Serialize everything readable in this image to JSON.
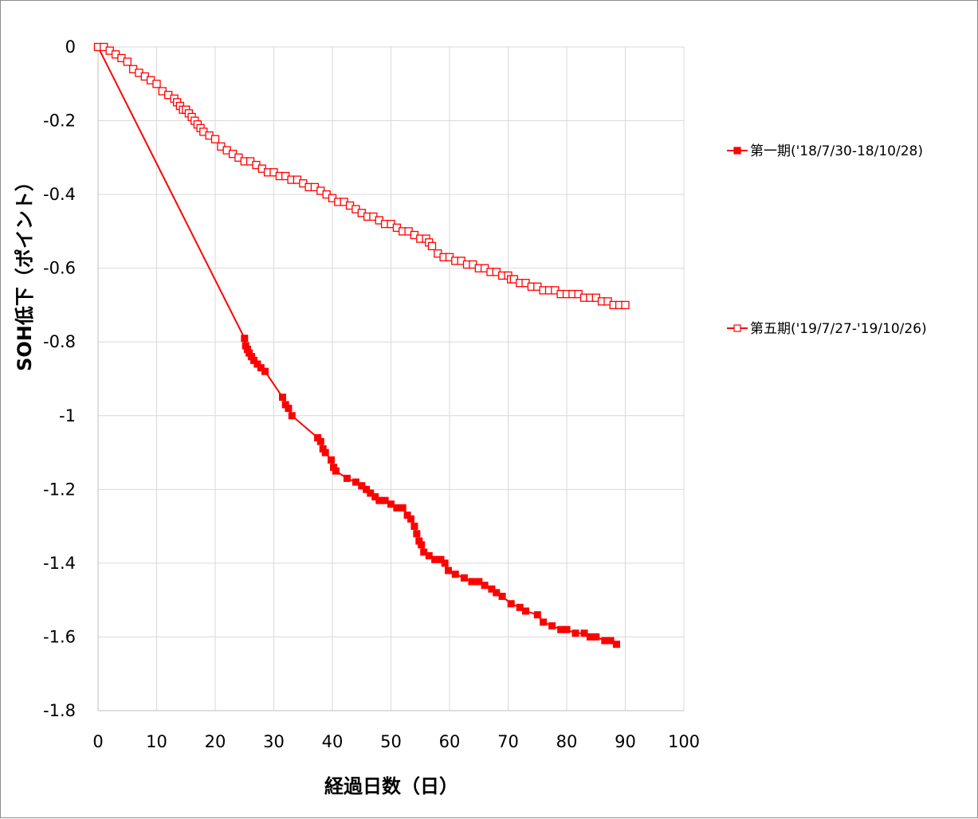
{
  "chart_data": {
    "type": "line",
    "xlabel": "経過日数（日）",
    "ylabel": "SOH低下（ポイント）",
    "xlim": [
      0,
      100
    ],
    "ylim": [
      -1.8,
      0
    ],
    "x_ticks": [
      "0",
      "10",
      "20",
      "30",
      "40",
      "50",
      "60",
      "70",
      "80",
      "90",
      "100"
    ],
    "y_ticks": [
      "0",
      "-0.2",
      "-0.4",
      "-0.6",
      "-0.8",
      "-1",
      "-1.2",
      "-1.4",
      "-1.6",
      "-1.8"
    ],
    "grid": true,
    "legend_position": "right",
    "series": [
      {
        "name": "第一期('18/7/30-18/10/28)",
        "color": "#ff0000",
        "marker": "filled-square",
        "x": [
          0,
          25.0,
          25.2,
          25.5,
          25.8,
          26.2,
          26.6,
          27.2,
          27.8,
          28.5,
          31.5,
          32.0,
          32.5,
          33.1,
          37.5,
          38.0,
          38.4,
          38.8,
          39.8,
          40.2,
          40.6,
          42.5,
          44.0,
          45.0,
          45.8,
          46.5,
          47.3,
          48.0,
          49.0,
          50.0,
          51.0,
          52.0,
          52.8,
          53.4,
          54.0,
          54.4,
          54.8,
          55.2,
          55.6,
          56.5,
          57.5,
          58.5,
          59.2,
          59.8,
          61.0,
          62.5,
          63.8,
          65.0,
          66.0,
          67.2,
          68.0,
          69.0,
          70.5,
          72.0,
          73.0,
          75.0,
          76.0,
          77.5,
          79.0,
          80.0,
          81.5,
          83.0,
          84.0,
          85.0,
          86.5,
          87.5,
          88.5
        ],
        "y": [
          0,
          -0.79,
          -0.81,
          -0.82,
          -0.83,
          -0.84,
          -0.85,
          -0.86,
          -0.87,
          -0.88,
          -0.95,
          -0.97,
          -0.98,
          -1.0,
          -1.06,
          -1.07,
          -1.09,
          -1.1,
          -1.12,
          -1.14,
          -1.15,
          -1.17,
          -1.18,
          -1.19,
          -1.2,
          -1.21,
          -1.22,
          -1.23,
          -1.23,
          -1.24,
          -1.25,
          -1.25,
          -1.27,
          -1.28,
          -1.3,
          -1.32,
          -1.34,
          -1.35,
          -1.37,
          -1.38,
          -1.39,
          -1.39,
          -1.4,
          -1.42,
          -1.43,
          -1.44,
          -1.45,
          -1.45,
          -1.46,
          -1.47,
          -1.48,
          -1.49,
          -1.51,
          -1.52,
          -1.53,
          -1.54,
          -1.56,
          -1.57,
          -1.58,
          -1.58,
          -1.59,
          -1.59,
          -1.6,
          -1.6,
          -1.61,
          -1.61,
          -1.62
        ]
      },
      {
        "name": "第五期('19/7/27-'19/10/26)",
        "color": "#ff0000",
        "marker": "hollow-square",
        "x": [
          0,
          1,
          2,
          3,
          4,
          5,
          6,
          7,
          8,
          9,
          10,
          11,
          12,
          13,
          13.5,
          14,
          14.5,
          15,
          15.5,
          16,
          16.5,
          17,
          17.5,
          18,
          19,
          20,
          21,
          22,
          23,
          24,
          25,
          26,
          27,
          28,
          29,
          30,
          31,
          32,
          33,
          34,
          35,
          36,
          37,
          38,
          39,
          40,
          41,
          42,
          43,
          44,
          45,
          46,
          47,
          48,
          49,
          50,
          51,
          52,
          53,
          54,
          55,
          56,
          56.5,
          57,
          58,
          59,
          60,
          61,
          62,
          63,
          64,
          65,
          66,
          67,
          68,
          69,
          70,
          70.5,
          71,
          72,
          73,
          74,
          75,
          76,
          77,
          78,
          79,
          80,
          81,
          82,
          83,
          84,
          85,
          86,
          87,
          88,
          89,
          90
        ],
        "y": [
          0,
          0,
          -0.01,
          -0.02,
          -0.03,
          -0.04,
          -0.06,
          -0.07,
          -0.08,
          -0.09,
          -0.1,
          -0.12,
          -0.13,
          -0.14,
          -0.15,
          -0.16,
          -0.17,
          -0.17,
          -0.18,
          -0.19,
          -0.2,
          -0.21,
          -0.22,
          -0.23,
          -0.24,
          -0.25,
          -0.27,
          -0.28,
          -0.29,
          -0.3,
          -0.31,
          -0.31,
          -0.32,
          -0.33,
          -0.34,
          -0.34,
          -0.35,
          -0.35,
          -0.36,
          -0.36,
          -0.37,
          -0.38,
          -0.38,
          -0.39,
          -0.4,
          -0.41,
          -0.42,
          -0.42,
          -0.43,
          -0.44,
          -0.45,
          -0.46,
          -0.46,
          -0.47,
          -0.48,
          -0.48,
          -0.49,
          -0.5,
          -0.5,
          -0.51,
          -0.52,
          -0.52,
          -0.53,
          -0.54,
          -0.56,
          -0.57,
          -0.57,
          -0.58,
          -0.58,
          -0.59,
          -0.59,
          -0.6,
          -0.6,
          -0.61,
          -0.61,
          -0.62,
          -0.62,
          -0.63,
          -0.63,
          -0.64,
          -0.64,
          -0.65,
          -0.65,
          -0.66,
          -0.66,
          -0.66,
          -0.67,
          -0.67,
          -0.67,
          -0.67,
          -0.68,
          -0.68,
          -0.68,
          -0.69,
          -0.69,
          -0.7,
          -0.7,
          -0.7
        ]
      }
    ]
  }
}
